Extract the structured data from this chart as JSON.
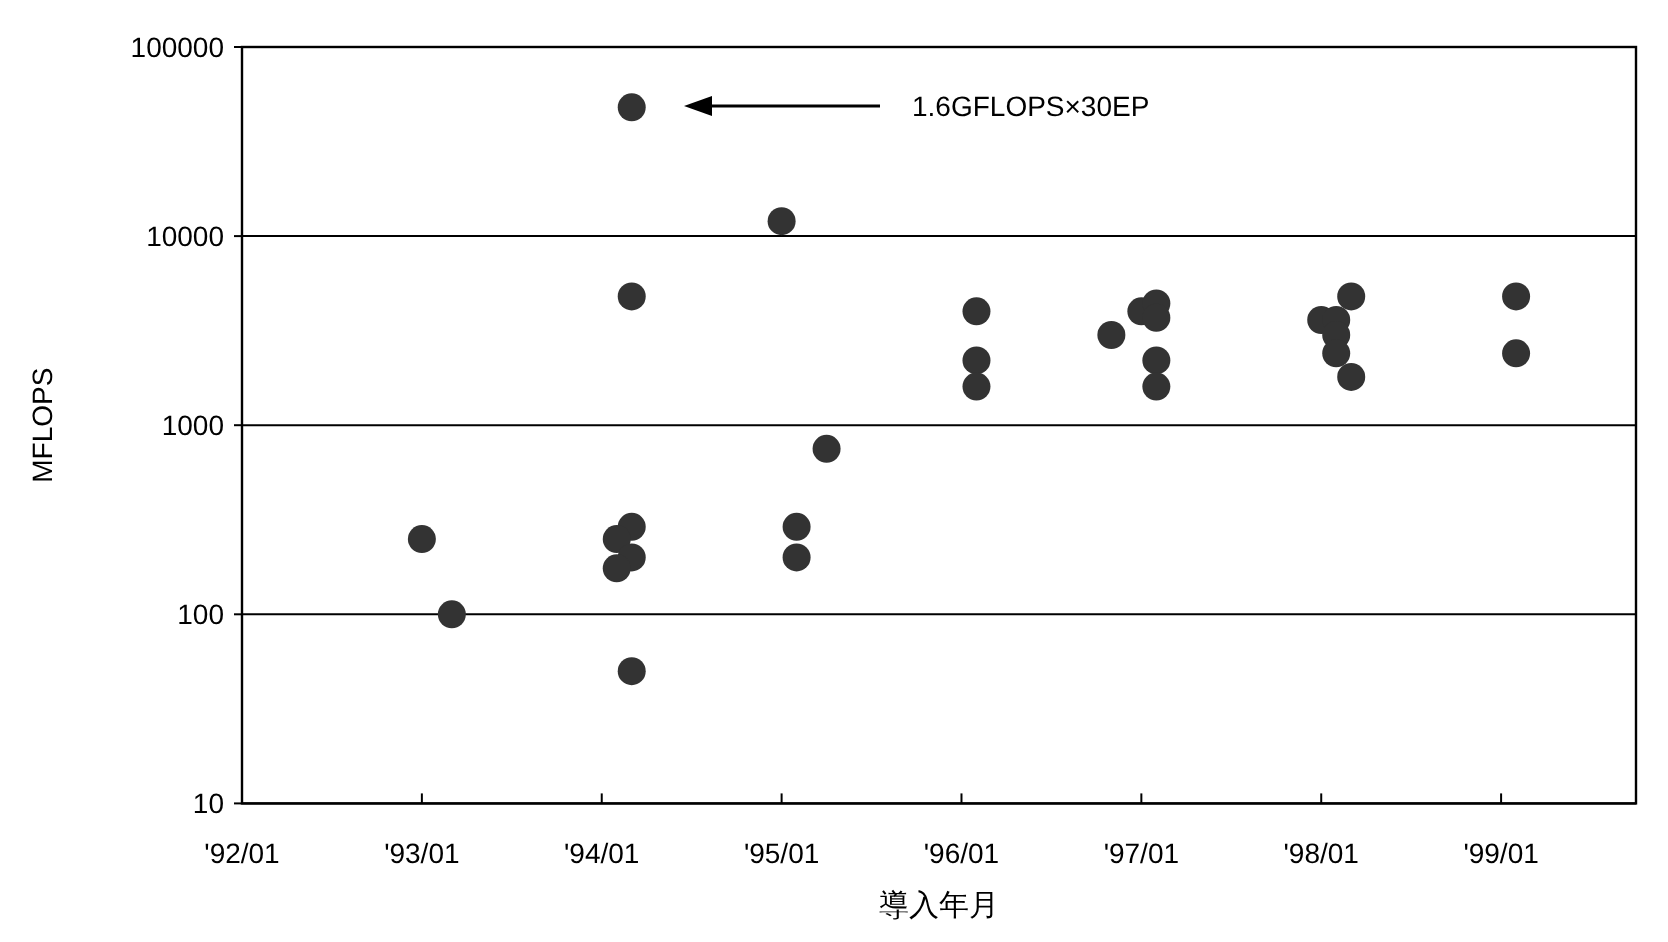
{
  "chart_data": {
    "type": "scatter",
    "xlabel": "導入年月",
    "ylabel": "MFLOPS",
    "log": "y",
    "grid": "y",
    "marker": "circle",
    "xlim": [
      "1992-01",
      "1999-10"
    ],
    "xticks": [
      {
        "value": "1992-01",
        "label": "'92/01"
      },
      {
        "value": "1993-01",
        "label": "'93/01"
      },
      {
        "value": "1994-01",
        "label": "'94/01"
      },
      {
        "value": "1995-01",
        "label": "'95/01"
      },
      {
        "value": "1996-01",
        "label": "'96/01"
      },
      {
        "value": "1997-01",
        "label": "'97/01"
      },
      {
        "value": "1998-01",
        "label": "'98/01"
      },
      {
        "value": "1999-01",
        "label": "'99/01"
      }
    ],
    "ylim": [
      10,
      100000
    ],
    "yticks": [
      10,
      100,
      1000,
      10000,
      100000
    ],
    "annotations": [
      "1.6GFLOPS×30EP"
    ],
    "series": [
      {
        "color": "#333333",
        "x": [
          "1993-01",
          "1993-03",
          "1994-03",
          "1994-03",
          "1994-03",
          "1994-02",
          "1994-03",
          "1994-02",
          "1994-03",
          "1995-01",
          "1995-02",
          "1995-02",
          "1995-04",
          "1996-02",
          "1996-02",
          "1996-02",
          "1996-11",
          "1997-01",
          "1997-02",
          "1997-02",
          "1997-02",
          "1997-02",
          "1998-01",
          "1998-02",
          "1998-02",
          "1998-02",
          "1998-03",
          "1998-03",
          "1999-02",
          "1999-02"
        ],
        "values": [
          250,
          100,
          48000,
          4800,
          290,
          250,
          200,
          175,
          50,
          12000,
          290,
          200,
          750,
          4000,
          2200,
          1600,
          3000,
          4000,
          4400,
          3700,
          2200,
          1600,
          3600,
          3600,
          3000,
          2400,
          4800,
          1800,
          4800,
          2400
        ]
      }
    ]
  }
}
